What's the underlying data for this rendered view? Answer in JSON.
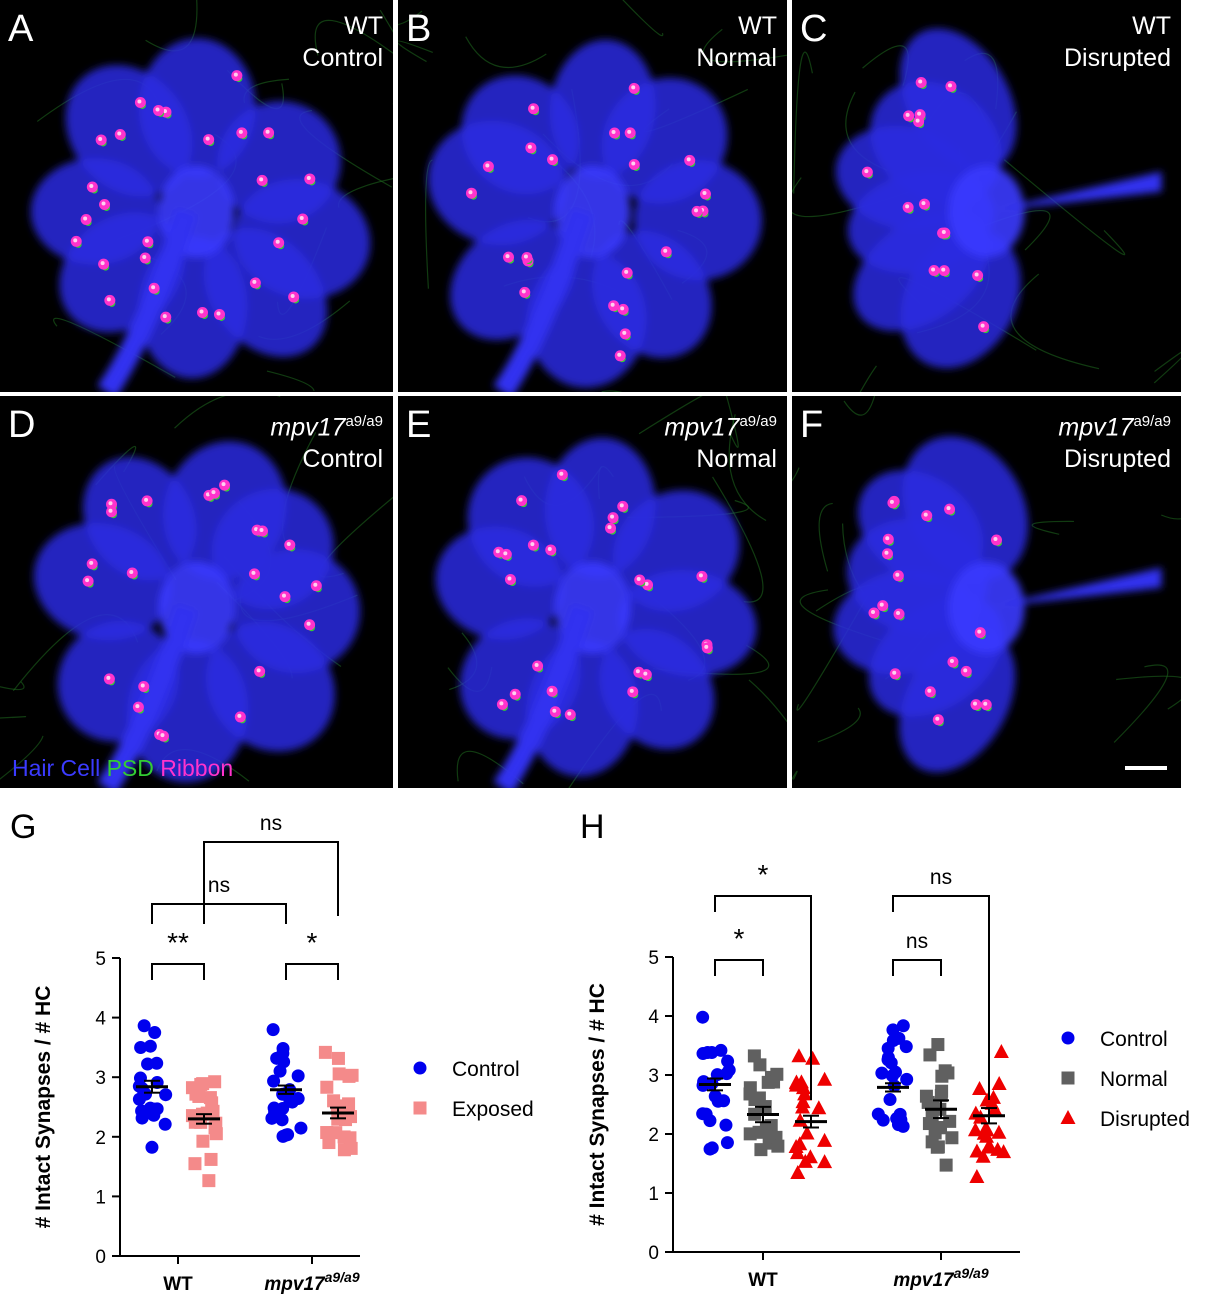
{
  "panels": [
    {
      "letter": "A",
      "genotype": "WT",
      "genotype_sup": "",
      "condition": "Control"
    },
    {
      "letter": "B",
      "genotype": "WT",
      "genotype_sup": "",
      "condition": "Normal"
    },
    {
      "letter": "C",
      "genotype": "WT",
      "genotype_sup": "",
      "condition": "Disrupted"
    },
    {
      "letter": "D",
      "genotype": "mpv17",
      "genotype_sup": "a9/a9",
      "condition": "Control"
    },
    {
      "letter": "E",
      "genotype": "mpv17",
      "genotype_sup": "a9/a9",
      "condition": "Normal"
    },
    {
      "letter": "F",
      "genotype": "mpv17",
      "genotype_sup": "a9/a9",
      "condition": "Disrupted"
    }
  ],
  "stain_legend": {
    "hair_cell": "Hair Cell",
    "hair_cell_color": "#3b3bff",
    "psd": "PSD",
    "psd_color": "#33cc33",
    "ribbon": "Ribbon",
    "ribbon_color": "#ff33cc"
  },
  "chart_data": [
    {
      "panel": "G",
      "type": "scatter",
      "ylabel": "# Intact Synapses / # HC",
      "ylim": [
        0,
        5
      ],
      "yticks": [
        "0",
        "1",
        "2",
        "3",
        "4",
        "5"
      ],
      "categories": [
        "WT",
        "mpv17"
      ],
      "category_sup": [
        "",
        "a9/a9"
      ],
      "series": [
        {
          "name": "Control",
          "color": "#0000ee",
          "marker": "circle",
          "mean": [
            2.84,
            2.79
          ],
          "sem": [
            0.1,
            0.07
          ]
        },
        {
          "name": "Exposed",
          "color": "#f48a8a",
          "marker": "square",
          "mean": [
            2.3,
            2.4
          ],
          "sem": [
            0.08,
            0.09
          ]
        }
      ],
      "comparisons": [
        {
          "label": "**",
          "from": "WT Control",
          "to": "WT Exposed"
        },
        {
          "label": "*",
          "from": "mpv17 Control",
          "to": "mpv17 Exposed"
        },
        {
          "label": "ns",
          "from": "WT Control",
          "to": "mpv17 Control"
        },
        {
          "label": "ns",
          "from": "WT Exposed",
          "to": "mpv17 Exposed"
        }
      ]
    },
    {
      "panel": "H",
      "type": "scatter",
      "ylabel": "# Intact Synapses / # HC",
      "ylim": [
        0,
        5
      ],
      "yticks": [
        "0",
        "1",
        "2",
        "3",
        "4",
        "5"
      ],
      "categories": [
        "WT",
        "mpv17"
      ],
      "category_sup": [
        "",
        "a9/a9"
      ],
      "series": [
        {
          "name": "Control",
          "color": "#0000ee",
          "marker": "circle",
          "mean": [
            2.84,
            2.79
          ],
          "sem": [
            0.1,
            0.07
          ]
        },
        {
          "name": "Normal",
          "color": "#606060",
          "marker": "square",
          "mean": [
            2.33,
            2.42
          ],
          "sem": [
            0.13,
            0.15
          ]
        },
        {
          "name": "Disrupted",
          "color": "#ee0000",
          "marker": "triangle",
          "mean": [
            2.21,
            2.31
          ],
          "sem": [
            0.1,
            0.13
          ]
        }
      ],
      "comparisons": [
        {
          "label": "*",
          "from": "WT Control",
          "to": "WT Normal"
        },
        {
          "label": "*",
          "from": "WT Control",
          "to": "WT Disrupted"
        },
        {
          "label": "ns",
          "from": "mpv17 Control",
          "to": "mpv17 Normal"
        },
        {
          "label": "ns",
          "from": "mpv17 Control",
          "to": "mpv17 Disrupted"
        }
      ]
    }
  ]
}
